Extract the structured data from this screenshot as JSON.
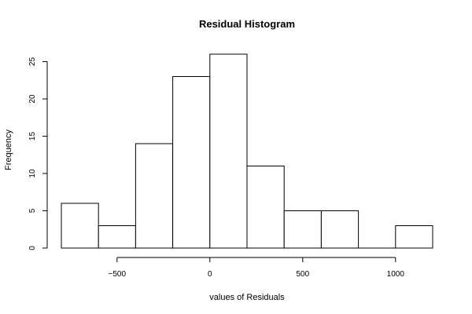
{
  "chart_data": {
    "type": "bar",
    "title": "Residual Histogram",
    "xlabel": "values of Residuals",
    "ylabel": "Frequency",
    "bins": [
      {
        "start": -800,
        "end": -600,
        "count": 6
      },
      {
        "start": -600,
        "end": -400,
        "count": 3
      },
      {
        "start": -400,
        "end": -200,
        "count": 14
      },
      {
        "start": -200,
        "end": 0,
        "count": 23
      },
      {
        "start": 0,
        "end": 200,
        "count": 26
      },
      {
        "start": 200,
        "end": 400,
        "count": 11
      },
      {
        "start": 400,
        "end": 600,
        "count": 5
      },
      {
        "start": 600,
        "end": 800,
        "count": 5
      },
      {
        "start": 800,
        "end": 1000,
        "count": 0
      },
      {
        "start": 1000,
        "end": 1200,
        "count": 3
      }
    ],
    "xticks": [
      -500,
      0,
      500,
      1000
    ],
    "xtick_labels": [
      "−500",
      "0",
      "500",
      "1000"
    ],
    "yticks": [
      0,
      5,
      10,
      15,
      20,
      25
    ],
    "xlim": [
      -800,
      1200
    ],
    "ylim": [
      0,
      26
    ],
    "grid": false,
    "legend": "none",
    "colors": {
      "bar_fill": "#ffffff",
      "bar_stroke": "#000000"
    }
  }
}
